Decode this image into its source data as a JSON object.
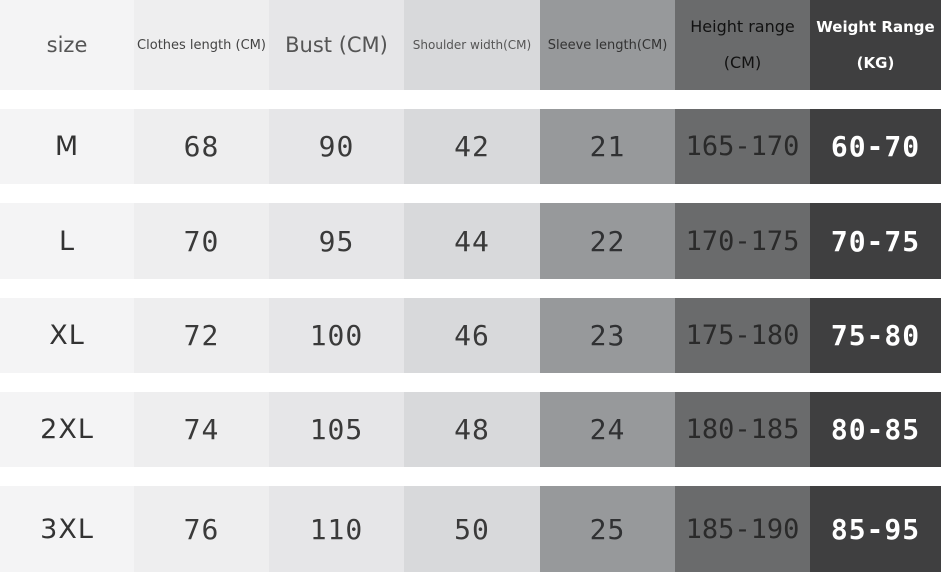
{
  "headers": {
    "size": "size",
    "clothes_length": "Clothes length (CM)",
    "bust": "Bust (CM)",
    "shoulder_width": "Shoulder width(CM)",
    "sleeve_length": "Sleeve length(CM)",
    "height_range_line1": "Height range",
    "height_range_line2": "(CM)",
    "weight_range_line1": "Weight Range",
    "weight_range_line2": "(KG)"
  },
  "rows": [
    {
      "size": "M",
      "clothes_length": "68",
      "bust": "90",
      "shoulder_width": "42",
      "sleeve_length": "21",
      "height_range": "165-170",
      "weight_range": "60-70"
    },
    {
      "size": "L",
      "clothes_length": "70",
      "bust": "95",
      "shoulder_width": "44",
      "sleeve_length": "22",
      "height_range": "170-175",
      "weight_range": "70-75"
    },
    {
      "size": "XL",
      "clothes_length": "72",
      "bust": "100",
      "shoulder_width": "46",
      "sleeve_length": "23",
      "height_range": "175-180",
      "weight_range": "75-80"
    },
    {
      "size": "2XL",
      "clothes_length": "74",
      "bust": "105",
      "shoulder_width": "48",
      "sleeve_length": "24",
      "height_range": "180-185",
      "weight_range": "80-85"
    },
    {
      "size": "3XL",
      "clothes_length": "76",
      "bust": "110",
      "shoulder_width": "50",
      "sleeve_length": "25",
      "height_range": "185-190",
      "weight_range": "85-95"
    }
  ],
  "colors": {
    "column_backgrounds": [
      "#f4f4f5",
      "#eeeeef",
      "#e6e6e8",
      "#d8d9db",
      "#97999b",
      "#6a6b6c",
      "#3f3f40"
    ],
    "page_background": "#ffffff"
  }
}
